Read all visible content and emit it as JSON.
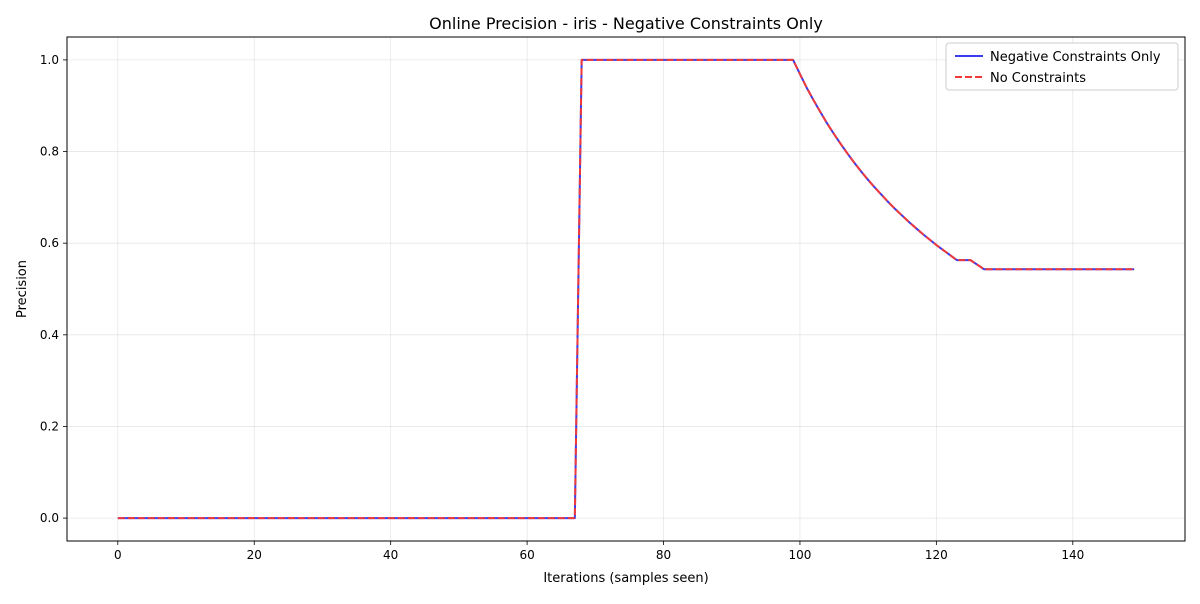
{
  "chart_data": {
    "type": "line",
    "title": "Online Precision - iris - Negative Constraints Only",
    "xlabel": "Iterations (samples seen)",
    "ylabel": "Precision",
    "xlim": [
      -7.45,
      156.45
    ],
    "ylim": [
      -0.05,
      1.05
    ],
    "xticks": [
      0,
      20,
      40,
      60,
      80,
      100,
      120,
      140
    ],
    "xtick_labels": [
      "0",
      "20",
      "40",
      "60",
      "80",
      "100",
      "120",
      "140"
    ],
    "yticks": [
      0.0,
      0.2,
      0.4,
      0.6,
      0.8,
      1.0
    ],
    "ytick_labels": [
      "0.0",
      "0.2",
      "0.4",
      "0.6",
      "0.8",
      "1.0"
    ],
    "grid": true,
    "legend_position": "top-right",
    "x": [
      0,
      67,
      68,
      99,
      100,
      101,
      102,
      103,
      104,
      105,
      106,
      107,
      108,
      109,
      110,
      111,
      112,
      113,
      114,
      115,
      116,
      117,
      118,
      119,
      120,
      121,
      122,
      123,
      124,
      125,
      126,
      127,
      128,
      149
    ],
    "series": [
      {
        "name": "Negative Constraints Only",
        "color": "#3b3bf0",
        "style": "solid",
        "values": [
          0.0,
          0.0,
          1.0,
          1.0,
          0.969,
          0.939,
          0.912,
          0.886,
          0.861,
          0.838,
          0.816,
          0.795,
          0.775,
          0.756,
          0.738,
          0.721,
          0.705,
          0.689,
          0.674,
          0.66,
          0.646,
          0.633,
          0.62,
          0.608,
          0.596,
          0.585,
          0.574,
          0.563,
          0.563,
          0.563,
          0.553,
          0.543,
          0.543,
          0.543
        ]
      },
      {
        "name": "No Constraints",
        "color": "#f03a3a",
        "style": "dashed",
        "values": [
          0.0,
          0.0,
          1.0,
          1.0,
          0.969,
          0.939,
          0.912,
          0.886,
          0.861,
          0.838,
          0.816,
          0.795,
          0.775,
          0.756,
          0.738,
          0.721,
          0.705,
          0.689,
          0.674,
          0.66,
          0.646,
          0.633,
          0.62,
          0.608,
          0.596,
          0.585,
          0.574,
          0.563,
          0.563,
          0.563,
          0.553,
          0.543,
          0.543,
          0.543
        ]
      }
    ]
  }
}
